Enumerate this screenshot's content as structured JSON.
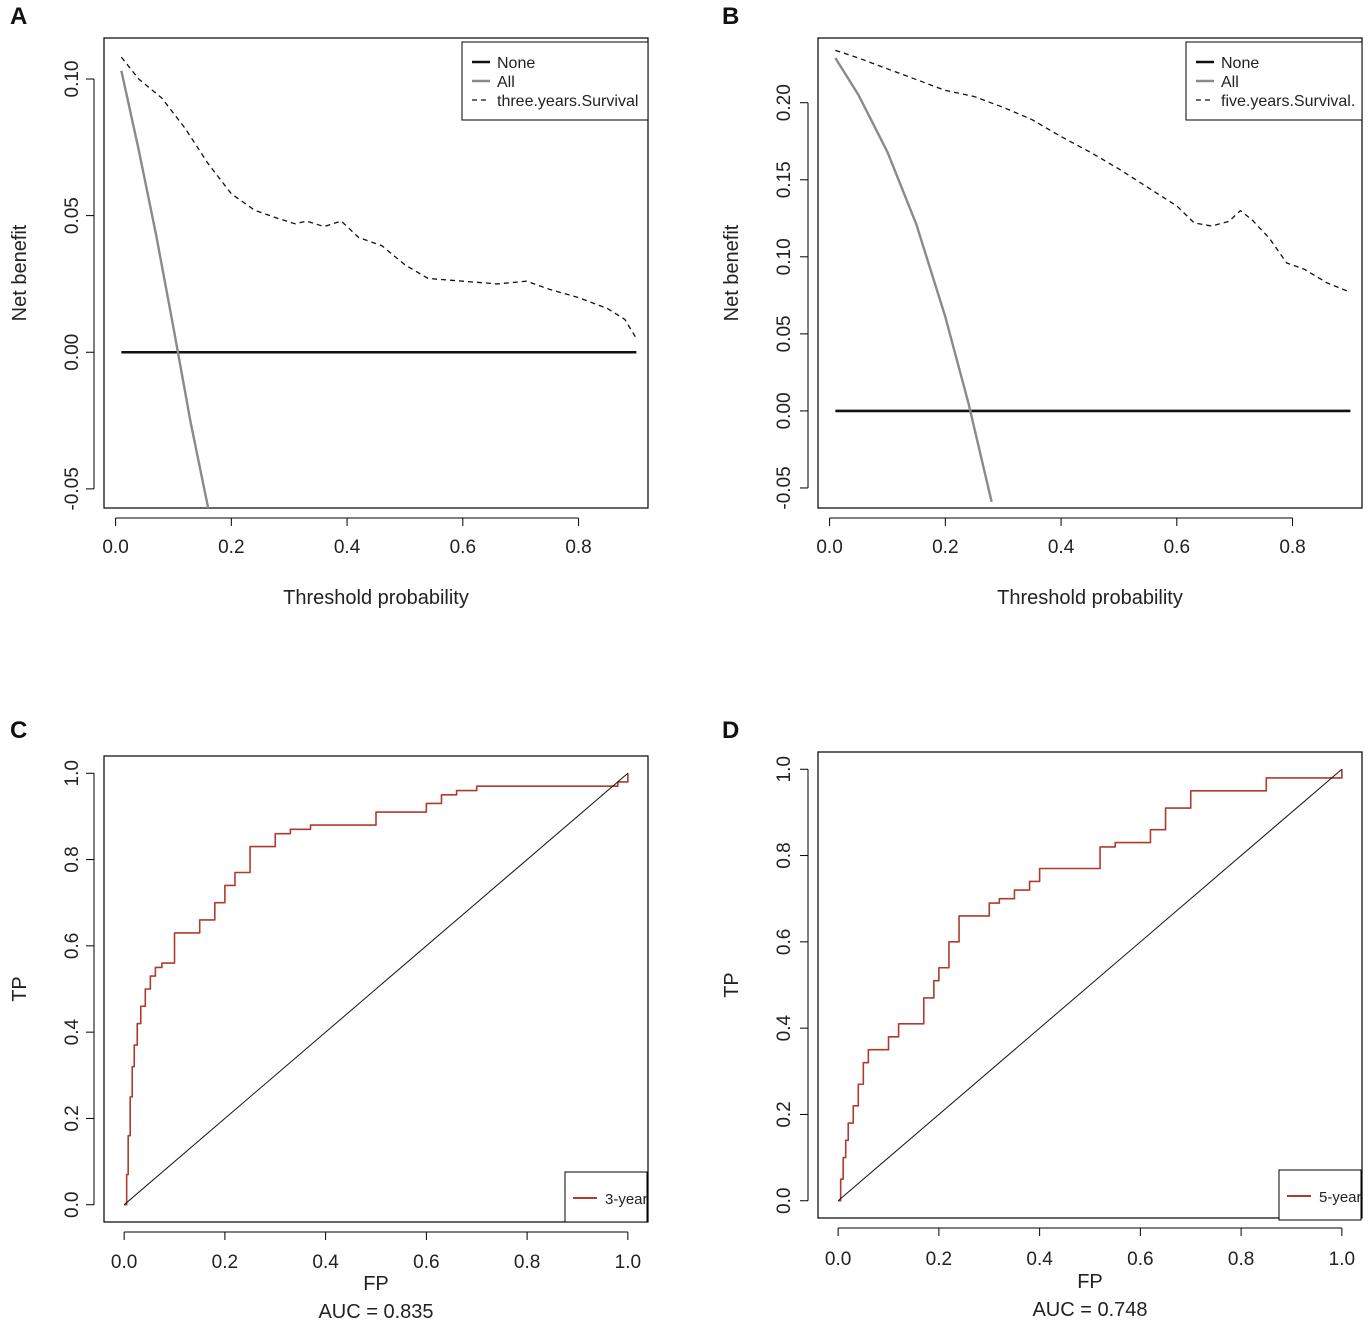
{
  "chart_data": [
    {
      "panel": "A",
      "type": "line",
      "xlabel": "Threshold probability",
      "ylabel": "Net benefit",
      "xlim": [
        -0.02,
        0.92
      ],
      "ylim": [
        -0.057,
        0.115
      ],
      "xticks": [
        0.0,
        0.2,
        0.4,
        0.6,
        0.8
      ],
      "xtick_labels": [
        "0.0",
        "0.2",
        "0.4",
        "0.6",
        "0.8"
      ],
      "yticks": [
        -0.05,
        0.0,
        0.05,
        0.1
      ],
      "ytick_labels": [
        "-0.05",
        "0.00",
        "0.05",
        "0.10"
      ],
      "legend": {
        "position": "top-right",
        "entries": [
          {
            "label": "None",
            "style": "solid-black"
          },
          {
            "label": "All",
            "style": "solid-gray"
          },
          {
            "label": "three.years.Survival",
            "style": "dashed-black"
          }
        ]
      },
      "series": [
        {
          "name": "None",
          "x": [
            0.01,
            0.9
          ],
          "y": [
            0.0,
            0.0
          ]
        },
        {
          "name": "All",
          "x": [
            0.01,
            0.04,
            0.07,
            0.1,
            0.13,
            0.16
          ],
          "y": [
            0.103,
            0.074,
            0.043,
            0.009,
            -0.026,
            -0.057
          ]
        },
        {
          "name": "three.years.Survival",
          "x": [
            0.01,
            0.04,
            0.08,
            0.12,
            0.16,
            0.2,
            0.24,
            0.28,
            0.31,
            0.33,
            0.36,
            0.39,
            0.42,
            0.46,
            0.5,
            0.54,
            0.6,
            0.66,
            0.71,
            0.75,
            0.8,
            0.85,
            0.88,
            0.9
          ],
          "y": [
            0.108,
            0.1,
            0.093,
            0.082,
            0.069,
            0.058,
            0.052,
            0.049,
            0.047,
            0.048,
            0.046,
            0.048,
            0.042,
            0.039,
            0.032,
            0.027,
            0.026,
            0.025,
            0.026,
            0.023,
            0.02,
            0.016,
            0.012,
            0.005
          ]
        }
      ]
    },
    {
      "panel": "B",
      "type": "line",
      "xlabel": "Threshold probability",
      "ylabel": "Net benefit",
      "xlim": [
        -0.02,
        0.92
      ],
      "ylim": [
        -0.063,
        0.242
      ],
      "xticks": [
        0.0,
        0.2,
        0.4,
        0.6,
        0.8
      ],
      "xtick_labels": [
        "0.0",
        "0.2",
        "0.4",
        "0.6",
        "0.8"
      ],
      "yticks": [
        -0.05,
        0.0,
        0.05,
        0.1,
        0.15,
        0.2
      ],
      "ytick_labels": [
        "-0.05",
        "0.00",
        "0.05",
        "0.10",
        "0.15",
        "0.20"
      ],
      "legend": {
        "position": "top-right",
        "entries": [
          {
            "label": "None",
            "style": "solid-black"
          },
          {
            "label": "All",
            "style": "solid-gray"
          },
          {
            "label": "five.years.Survival.",
            "style": "dashed-black"
          }
        ]
      },
      "series": [
        {
          "name": "None",
          "x": [
            0.01,
            0.9
          ],
          "y": [
            0.0,
            0.0
          ]
        },
        {
          "name": "All",
          "x": [
            0.01,
            0.05,
            0.1,
            0.15,
            0.2,
            0.24,
            0.28
          ],
          "y": [
            0.229,
            0.205,
            0.168,
            0.121,
            0.061,
            0.005,
            -0.059
          ]
        },
        {
          "name": "five.years.Survival.",
          "x": [
            0.01,
            0.05,
            0.1,
            0.15,
            0.2,
            0.25,
            0.3,
            0.35,
            0.4,
            0.45,
            0.5,
            0.55,
            0.6,
            0.63,
            0.66,
            0.69,
            0.71,
            0.73,
            0.76,
            0.79,
            0.82,
            0.86,
            0.9
          ],
          "y": [
            0.234,
            0.229,
            0.222,
            0.215,
            0.208,
            0.204,
            0.197,
            0.189,
            0.178,
            0.168,
            0.157,
            0.145,
            0.133,
            0.122,
            0.12,
            0.123,
            0.13,
            0.124,
            0.112,
            0.096,
            0.092,
            0.083,
            0.077
          ]
        }
      ]
    },
    {
      "panel": "C",
      "type": "line",
      "xlabel": "FP",
      "ylabel": "TP",
      "auc_label": "AUC =  0.835",
      "xlim": [
        -0.04,
        1.04
      ],
      "ylim": [
        -0.04,
        1.04
      ],
      "xticks": [
        0.0,
        0.2,
        0.4,
        0.6,
        0.8,
        1.0
      ],
      "xtick_labels": [
        "0.0",
        "0.2",
        "0.4",
        "0.6",
        "0.8",
        "1.0"
      ],
      "yticks": [
        0.0,
        0.2,
        0.4,
        0.6,
        0.8,
        1.0
      ],
      "ytick_labels": [
        "0.0",
        "0.2",
        "0.4",
        "0.6",
        "0.8",
        "1.0"
      ],
      "legend": {
        "position": "bottom-right",
        "entries": [
          {
            "label": "3-year",
            "color": "#b03a2e"
          }
        ]
      },
      "series": [
        {
          "name": "3-year",
          "x": [
            0.0,
            0.005,
            0.008,
            0.012,
            0.016,
            0.02,
            0.026,
            0.033,
            0.042,
            0.052,
            0.062,
            0.075,
            0.1,
            0.12,
            0.15,
            0.18,
            0.2,
            0.22,
            0.25,
            0.28,
            0.3,
            0.33,
            0.37,
            0.4,
            0.46,
            0.5,
            0.55,
            0.6,
            0.63,
            0.66,
            0.7,
            0.75,
            0.8,
            0.85,
            0.9,
            0.95,
            0.98,
            1.0
          ],
          "y": [
            0.0,
            0.07,
            0.16,
            0.25,
            0.32,
            0.37,
            0.42,
            0.46,
            0.5,
            0.53,
            0.55,
            0.56,
            0.63,
            0.63,
            0.66,
            0.7,
            0.74,
            0.77,
            0.83,
            0.83,
            0.86,
            0.87,
            0.88,
            0.88,
            0.88,
            0.91,
            0.91,
            0.93,
            0.95,
            0.96,
            0.97,
            0.97,
            0.97,
            0.97,
            0.97,
            0.97,
            0.98,
            1.0
          ]
        },
        {
          "name": "reference",
          "x": [
            0,
            1
          ],
          "y": [
            0,
            1
          ]
        }
      ]
    },
    {
      "panel": "D",
      "type": "line",
      "xlabel": "FP",
      "ylabel": "TP",
      "auc_label": "AUC =  0.748",
      "xlim": [
        -0.04,
        1.04
      ],
      "ylim": [
        -0.04,
        1.04
      ],
      "xticks": [
        0.0,
        0.2,
        0.4,
        0.6,
        0.8,
        1.0
      ],
      "xtick_labels": [
        "0.0",
        "0.2",
        "0.4",
        "0.6",
        "0.8",
        "1.0"
      ],
      "yticks": [
        0.0,
        0.2,
        0.4,
        0.6,
        0.8,
        1.0
      ],
      "ytick_labels": [
        "0.0",
        "0.2",
        "0.4",
        "0.6",
        "0.8",
        "1.0"
      ],
      "legend": {
        "position": "bottom-right",
        "entries": [
          {
            "label": "5-year",
            "color": "#b03a2e"
          }
        ]
      },
      "series": [
        {
          "name": "5-year",
          "x": [
            0.0,
            0.005,
            0.01,
            0.015,
            0.02,
            0.03,
            0.04,
            0.05,
            0.06,
            0.08,
            0.1,
            0.12,
            0.15,
            0.17,
            0.19,
            0.2,
            0.22,
            0.24,
            0.26,
            0.3,
            0.32,
            0.35,
            0.38,
            0.4,
            0.45,
            0.5,
            0.52,
            0.55,
            0.58,
            0.6,
            0.62,
            0.65,
            0.7,
            0.75,
            0.8,
            0.85,
            0.9,
            0.95,
            1.0
          ],
          "y": [
            0.0,
            0.05,
            0.1,
            0.14,
            0.18,
            0.22,
            0.27,
            0.32,
            0.35,
            0.35,
            0.38,
            0.41,
            0.41,
            0.47,
            0.51,
            0.54,
            0.6,
            0.66,
            0.66,
            0.69,
            0.7,
            0.72,
            0.74,
            0.77,
            0.77,
            0.77,
            0.82,
            0.83,
            0.83,
            0.83,
            0.86,
            0.91,
            0.95,
            0.95,
            0.95,
            0.98,
            0.98,
            0.98,
            1.0
          ]
        },
        {
          "name": "reference",
          "x": [
            0,
            1
          ],
          "y": [
            0,
            1
          ]
        }
      ]
    }
  ]
}
